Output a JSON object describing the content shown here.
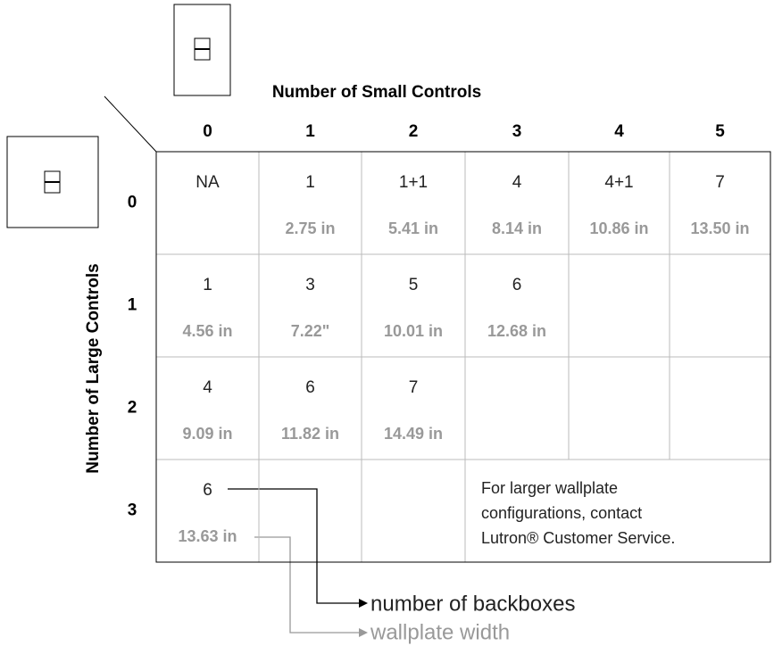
{
  "header": {
    "column_title": "Number of Small Controls",
    "row_title": "Number of Large Controls",
    "columns": [
      "0",
      "1",
      "2",
      "3",
      "4",
      "5"
    ],
    "rows": [
      "0",
      "1",
      "2",
      "3"
    ]
  },
  "table": {
    "rows": [
      [
        {
          "count": "NA"
        },
        {
          "count": "1",
          "width": "2.75 in"
        },
        {
          "count": "1+1",
          "width": "5.41 in"
        },
        {
          "count": "4",
          "width": "8.14 in"
        },
        {
          "count": "4+1",
          "width": "10.86 in"
        },
        {
          "count": "7",
          "width": "13.50 in"
        }
      ],
      [
        {
          "count": "1",
          "width": "4.56 in"
        },
        {
          "count": "3",
          "width": "7.22\""
        },
        {
          "count": "5",
          "width": "10.01 in"
        },
        {
          "count": "6",
          "width": "12.68 in"
        },
        {},
        {}
      ],
      [
        {
          "count": "4",
          "width": "9.09 in"
        },
        {
          "count": "6",
          "width": "11.82 in"
        },
        {
          "count": "7",
          "width": "14.49 in"
        },
        {},
        {},
        {}
      ],
      [
        {
          "count": "6",
          "width": "13.63 in"
        },
        {},
        {}
      ]
    ]
  },
  "note": {
    "lines": [
      "For larger wallplate",
      "configurations, contact",
      "Lutron® Customer Service."
    ]
  },
  "legend": {
    "count": "number of backboxes",
    "width": "wallplate width"
  }
}
